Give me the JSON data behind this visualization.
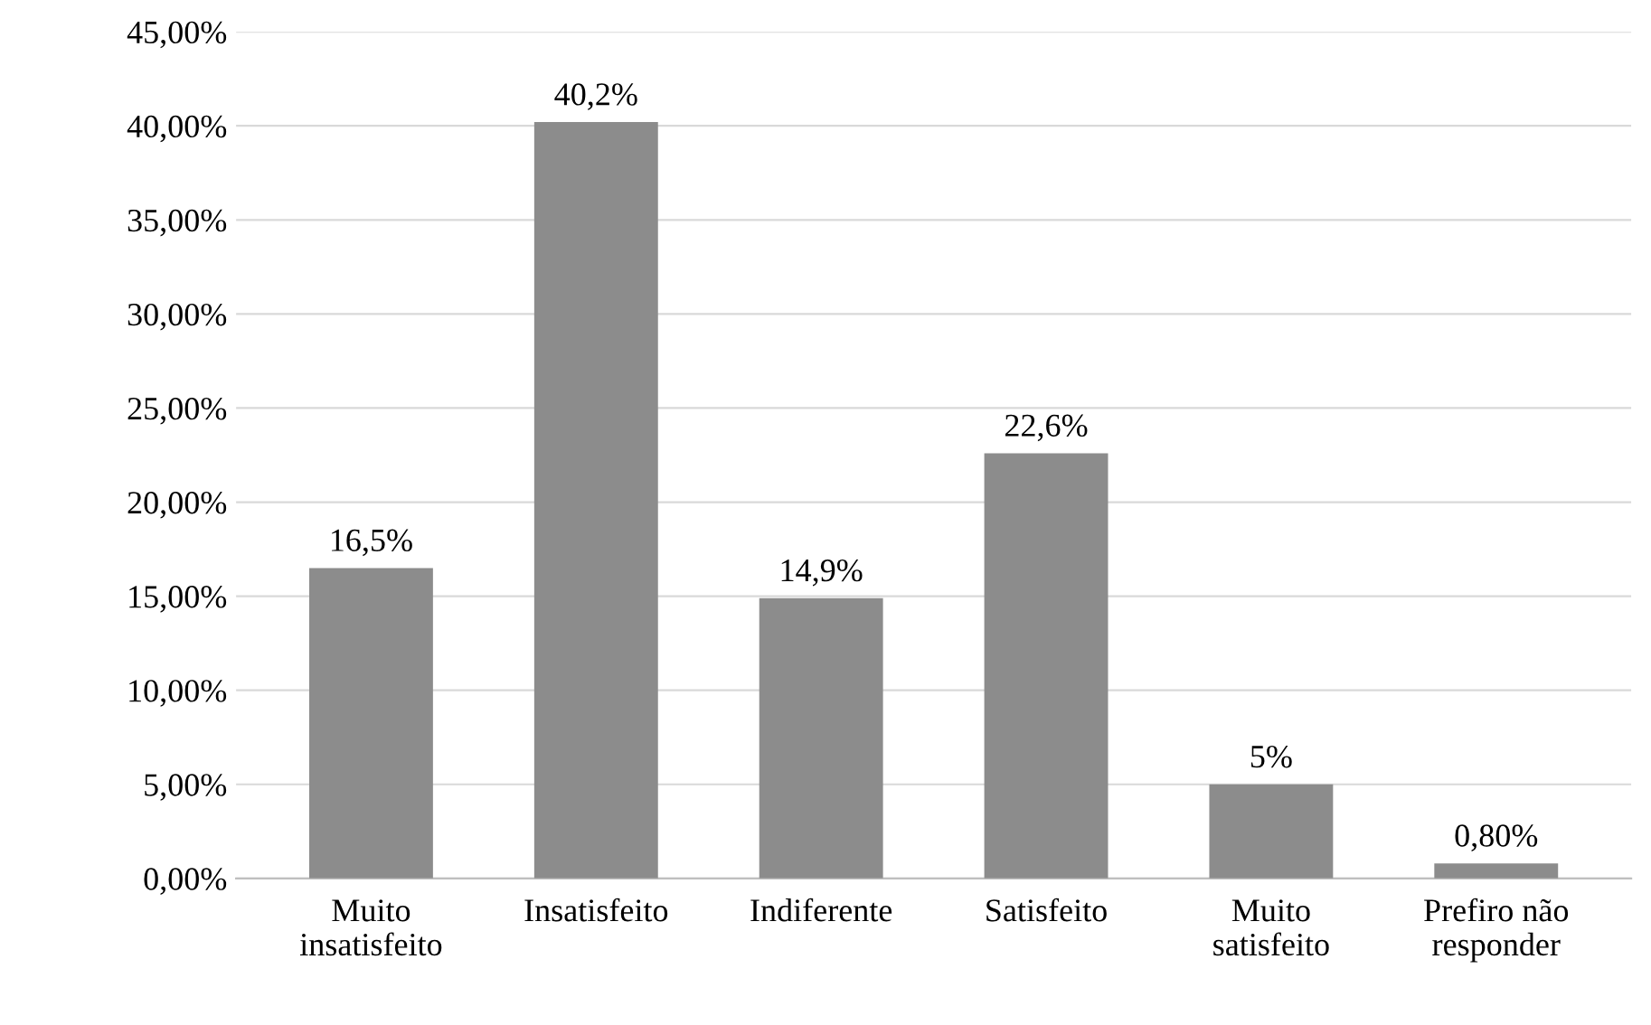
{
  "chart_data": {
    "type": "bar",
    "categories": [
      "Muito\ninsatisfeito",
      "Insatisfeito",
      "Indiferente",
      "Satisfeito",
      "Muito\nsatisfeito",
      "Prefiro não\nresponder"
    ],
    "values": [
      16.5,
      40.2,
      14.9,
      22.6,
      5,
      0.8
    ],
    "value_labels": [
      "16,5%",
      "40,2%",
      "14,9%",
      "22,6%",
      "5%",
      "0,80%"
    ],
    "color": "#8c8c8c",
    "ylim": [
      0,
      45
    ],
    "yticks": [
      {
        "value": 0,
        "label": "0,00%"
      },
      {
        "value": 5,
        "label": "5,00%"
      },
      {
        "value": 10,
        "label": "10,00%"
      },
      {
        "value": 15,
        "label": "15,00%"
      },
      {
        "value": 20,
        "label": "20,00%"
      },
      {
        "value": 25,
        "label": "25,00%"
      },
      {
        "value": 30,
        "label": "30,00%"
      },
      {
        "value": 35,
        "label": "35,00%"
      },
      {
        "value": 40,
        "label": "40,00%"
      },
      {
        "value": 45,
        "label": "45,00%"
      }
    ],
    "grid": "y"
  }
}
